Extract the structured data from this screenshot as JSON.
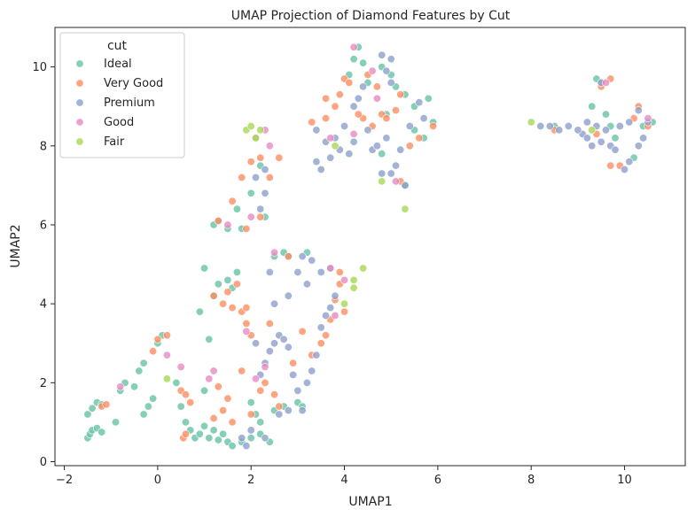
{
  "chart_data": {
    "type": "scatter",
    "title": "UMAP Projection of Diamond Features by Cut",
    "xlabel": "UMAP1",
    "ylabel": "UMAP2",
    "xlim": [
      -2.2,
      11.3
    ],
    "ylim": [
      -0.1,
      11.0
    ],
    "xticks": [
      -2,
      0,
      2,
      4,
      6,
      8,
      10
    ],
    "yticks": [
      0,
      2,
      4,
      6,
      8,
      10
    ],
    "grid": false,
    "legend": {
      "title": "cut",
      "placement": "top-left"
    },
    "series": [
      {
        "name": "Ideal",
        "color": "#66c2a5",
        "points": [
          [
            -1.5,
            0.6
          ],
          [
            -1.45,
            0.7
          ],
          [
            -1.4,
            0.8
          ],
          [
            -1.3,
            0.85
          ],
          [
            -1.2,
            0.75
          ],
          [
            -1.5,
            1.2
          ],
          [
            -1.4,
            1.35
          ],
          [
            -1.3,
            1.5
          ],
          [
            -1.2,
            1.45
          ],
          [
            -0.9,
            1.0
          ],
          [
            -0.8,
            1.8
          ],
          [
            -0.7,
            2.0
          ],
          [
            -0.5,
            1.9
          ],
          [
            -0.3,
            2.5
          ],
          [
            -0.4,
            2.3
          ],
          [
            -0.3,
            1.2
          ],
          [
            -0.2,
            1.4
          ],
          [
            -0.1,
            1.6
          ],
          [
            0.0,
            3.0
          ],
          [
            0.1,
            3.2
          ],
          [
            0.4,
            2.0
          ],
          [
            0.5,
            1.4
          ],
          [
            0.6,
            1.0
          ],
          [
            0.7,
            0.8
          ],
          [
            0.8,
            0.6
          ],
          [
            0.9,
            0.7
          ],
          [
            1.0,
            0.9
          ],
          [
            1.1,
            0.6
          ],
          [
            1.2,
            0.8
          ],
          [
            1.3,
            0.55
          ],
          [
            1.4,
            0.7
          ],
          [
            1.5,
            0.5
          ],
          [
            1.6,
            0.4
          ],
          [
            1.8,
            0.5
          ],
          [
            2.0,
            0.6
          ],
          [
            2.2,
            0.7
          ],
          [
            2.4,
            0.5
          ],
          [
            1.0,
            1.8
          ],
          [
            1.1,
            3.1
          ],
          [
            0.9,
            3.8
          ],
          [
            1.0,
            4.9
          ],
          [
            1.2,
            4.2
          ],
          [
            1.3,
            4.5
          ],
          [
            1.5,
            4.6
          ],
          [
            1.6,
            4.4
          ],
          [
            1.7,
            4.8
          ],
          [
            1.2,
            6.0
          ],
          [
            1.3,
            6.1
          ],
          [
            1.5,
            5.9
          ],
          [
            1.7,
            6.4
          ],
          [
            1.8,
            5.9
          ],
          [
            2.0,
            6.8
          ],
          [
            2.2,
            7.5
          ],
          [
            2.3,
            6.2
          ],
          [
            2.5,
            5.2
          ],
          [
            2.7,
            5.3
          ],
          [
            2.8,
            5.2
          ],
          [
            3.2,
            5.3
          ],
          [
            2.0,
            1.5
          ],
          [
            2.1,
            1.2
          ],
          [
            2.2,
            1.0
          ],
          [
            2.5,
            1.3
          ],
          [
            2.7,
            1.4
          ],
          [
            3.0,
            1.5
          ],
          [
            3.1,
            1.4
          ],
          [
            4.1,
            9.8
          ],
          [
            4.2,
            10.2
          ],
          [
            4.3,
            10.5
          ],
          [
            4.4,
            10.1
          ],
          [
            4.5,
            9.6
          ],
          [
            4.8,
            10.0
          ],
          [
            5.0,
            9.8
          ],
          [
            5.1,
            9.5
          ],
          [
            5.3,
            9.3
          ],
          [
            5.5,
            9.0
          ],
          [
            5.8,
            9.2
          ],
          [
            5.9,
            8.6
          ],
          [
            5.7,
            8.2
          ],
          [
            5.3,
            7.0
          ],
          [
            5.5,
            8.4
          ],
          [
            4.8,
            7.8
          ],
          [
            4.9,
            8.8
          ],
          [
            9.4,
            9.7
          ],
          [
            9.5,
            9.6
          ],
          [
            9.6,
            8.8
          ],
          [
            9.7,
            8.5
          ],
          [
            9.8,
            8.2
          ],
          [
            9.3,
            9.0
          ],
          [
            10.2,
            7.7
          ],
          [
            10.4,
            8.5
          ],
          [
            10.6,
            8.6
          ],
          [
            8.5,
            8.5
          ]
        ]
      },
      {
        "name": "Very Good",
        "color": "#fc8d62",
        "points": [
          [
            -1.2,
            1.4
          ],
          [
            -1.1,
            1.45
          ],
          [
            0.0,
            3.1
          ],
          [
            0.2,
            3.2
          ],
          [
            -0.1,
            2.8
          ],
          [
            0.5,
            1.8
          ],
          [
            0.6,
            1.7
          ],
          [
            0.7,
            1.5
          ],
          [
            0.55,
            0.6
          ],
          [
            0.6,
            0.7
          ],
          [
            1.2,
            4.2
          ],
          [
            1.4,
            4.0
          ],
          [
            1.5,
            4.3
          ],
          [
            1.6,
            3.9
          ],
          [
            1.7,
            4.5
          ],
          [
            1.8,
            3.8
          ],
          [
            1.9,
            3.5
          ],
          [
            1.9,
            3.9
          ],
          [
            2.0,
            3.2
          ],
          [
            1.8,
            2.3
          ],
          [
            1.5,
            1.6
          ],
          [
            1.3,
            1.9
          ],
          [
            1.4,
            1.3
          ],
          [
            1.2,
            1.1
          ],
          [
            1.6,
            1.0
          ],
          [
            2.0,
            1.2
          ],
          [
            2.2,
            1.8
          ],
          [
            2.3,
            2.0
          ],
          [
            2.5,
            1.7
          ],
          [
            2.6,
            1.4
          ],
          [
            2.9,
            2.5
          ],
          [
            3.3,
            2.7
          ],
          [
            3.5,
            3.0
          ],
          [
            3.6,
            3.2
          ],
          [
            3.7,
            3.6
          ],
          [
            3.8,
            4.1
          ],
          [
            3.9,
            4.5
          ],
          [
            4.0,
            3.8
          ],
          [
            3.9,
            4.8
          ],
          [
            1.6,
            6.6
          ],
          [
            1.8,
            7.2
          ],
          [
            2.0,
            7.6
          ],
          [
            2.2,
            7.7
          ],
          [
            2.4,
            7.2
          ],
          [
            2.6,
            7.7
          ],
          [
            1.3,
            6.1
          ],
          [
            1.9,
            5.9
          ],
          [
            2.2,
            6.2
          ],
          [
            2.8,
            5.2
          ],
          [
            3.6,
            9.2
          ],
          [
            3.8,
            9.0
          ],
          [
            3.9,
            9.3
          ],
          [
            4.0,
            9.7
          ],
          [
            4.1,
            9.6
          ],
          [
            4.5,
            9.8
          ],
          [
            4.7,
            9.5
          ],
          [
            4.8,
            8.8
          ],
          [
            4.9,
            8.7
          ],
          [
            5.1,
            8.9
          ],
          [
            5.2,
            9.3
          ],
          [
            5.4,
            8.0
          ],
          [
            5.6,
            8.2
          ],
          [
            5.9,
            8.5
          ],
          [
            4.4,
            8.7
          ],
          [
            4.6,
            8.5
          ],
          [
            4.3,
            8.8
          ],
          [
            5.2,
            7.1
          ],
          [
            3.3,
            8.6
          ],
          [
            3.6,
            8.7
          ],
          [
            8.5,
            8.4
          ],
          [
            9.5,
            9.5
          ],
          [
            9.7,
            9.7
          ],
          [
            10.2,
            8.7
          ],
          [
            10.3,
            9.0
          ],
          [
            10.5,
            8.5
          ],
          [
            9.7,
            7.5
          ],
          [
            9.9,
            7.5
          ],
          [
            9.4,
            8.3
          ],
          [
            2.4,
            3.5
          ],
          [
            3.1,
            3.3
          ]
        ]
      },
      {
        "name": "Premium",
        "color": "#8da0cb",
        "points": [
          [
            1.8,
            0.6
          ],
          [
            1.9,
            0.4
          ],
          [
            2.2,
            2.2
          ],
          [
            2.3,
            2.5
          ],
          [
            2.4,
            2.8
          ],
          [
            2.5,
            3.0
          ],
          [
            2.6,
            3.2
          ],
          [
            2.7,
            3.1
          ],
          [
            2.8,
            2.9
          ],
          [
            2.9,
            2.2
          ],
          [
            3.0,
            1.8
          ],
          [
            3.1,
            1.3
          ],
          [
            3.2,
            2.0
          ],
          [
            3.3,
            2.3
          ],
          [
            3.4,
            2.7
          ],
          [
            3.5,
            3.4
          ],
          [
            3.6,
            3.7
          ],
          [
            3.7,
            3.9
          ],
          [
            3.8,
            4.2
          ],
          [
            2.1,
            3.0
          ],
          [
            2.5,
            4.0
          ],
          [
            2.8,
            4.2
          ],
          [
            3.0,
            4.8
          ],
          [
            3.1,
            5.2
          ],
          [
            3.3,
            5.1
          ],
          [
            3.5,
            4.8
          ],
          [
            3.7,
            4.9
          ],
          [
            2.6,
            1.2
          ],
          [
            2.8,
            1.3
          ],
          [
            2.0,
            0.8
          ],
          [
            2.3,
            0.6
          ],
          [
            2.2,
            6.4
          ],
          [
            2.3,
            6.8
          ],
          [
            2.1,
            7.2
          ],
          [
            2.3,
            7.4
          ],
          [
            3.4,
            7.6
          ],
          [
            3.5,
            7.4
          ],
          [
            3.6,
            8.1
          ],
          [
            3.7,
            7.7
          ],
          [
            3.8,
            8.2
          ],
          [
            3.9,
            7.9
          ],
          [
            4.0,
            8.5
          ],
          [
            4.1,
            7.8
          ],
          [
            4.2,
            8.1
          ],
          [
            4.3,
            9.2
          ],
          [
            4.4,
            9.5
          ],
          [
            4.5,
            8.4
          ],
          [
            4.6,
            7.9
          ],
          [
            4.7,
            8.0
          ],
          [
            4.8,
            7.3
          ],
          [
            4.9,
            8.2
          ],
          [
            5.0,
            7.3
          ],
          [
            5.1,
            7.5
          ],
          [
            5.2,
            7.9
          ],
          [
            5.3,
            7.0
          ],
          [
            5.4,
            8.5
          ],
          [
            5.6,
            9.1
          ],
          [
            5.7,
            8.7
          ],
          [
            3.4,
            8.4
          ],
          [
            4.2,
            9.0
          ],
          [
            4.9,
            9.9
          ],
          [
            5.0,
            10.2
          ],
          [
            4.8,
            10.3
          ],
          [
            5.0,
            9.6
          ],
          [
            9.1,
            8.3
          ],
          [
            9.2,
            8.2
          ],
          [
            9.3,
            8.0
          ],
          [
            9.5,
            8.1
          ],
          [
            9.6,
            8.4
          ],
          [
            9.7,
            8.0
          ],
          [
            9.8,
            7.9
          ],
          [
            10.0,
            7.4
          ],
          [
            10.1,
            7.6
          ],
          [
            10.3,
            8.0
          ],
          [
            10.4,
            8.2
          ],
          [
            10.5,
            8.6
          ],
          [
            10.3,
            8.9
          ],
          [
            10.1,
            8.6
          ],
          [
            9.9,
            8.5
          ],
          [
            9.4,
            8.5
          ],
          [
            9.2,
            8.6
          ],
          [
            9.0,
            8.4
          ],
          [
            8.8,
            8.5
          ],
          [
            8.6,
            8.4
          ],
          [
            8.4,
            8.5
          ],
          [
            8.2,
            8.5
          ],
          [
            9.5,
            9.6
          ],
          [
            3.2,
            4.5
          ],
          [
            2.4,
            4.8
          ]
        ]
      },
      {
        "name": "Good",
        "color": "#e78ac3",
        "points": [
          [
            -0.8,
            1.9
          ],
          [
            0.2,
            2.7
          ],
          [
            0.5,
            2.4
          ],
          [
            1.1,
            2.1
          ],
          [
            1.2,
            2.3
          ],
          [
            1.9,
            3.3
          ],
          [
            2.1,
            2.1
          ],
          [
            2.3,
            2.4
          ],
          [
            2.1,
            8.2
          ],
          [
            2.3,
            8.4
          ],
          [
            2.4,
            8.0
          ],
          [
            1.5,
            6.0
          ],
          [
            2.0,
            6.2
          ],
          [
            2.5,
            5.3
          ],
          [
            3.7,
            4.9
          ],
          [
            3.8,
            3.7
          ],
          [
            4.0,
            4.6
          ],
          [
            4.2,
            10.5
          ],
          [
            4.6,
            9.9
          ],
          [
            4.7,
            9.2
          ],
          [
            5.1,
            7.1
          ],
          [
            4.2,
            8.3
          ],
          [
            3.7,
            8.2
          ],
          [
            10.5,
            8.7
          ],
          [
            9.6,
            9.6
          ]
        ]
      },
      {
        "name": "Fair",
        "color": "#a6d854",
        "points": [
          [
            0.2,
            2.1
          ],
          [
            1.9,
            8.4
          ],
          [
            2.0,
            8.5
          ],
          [
            2.1,
            8.2
          ],
          [
            2.2,
            8.4
          ],
          [
            3.8,
            8.0
          ],
          [
            4.2,
            4.6
          ],
          [
            4.2,
            4.4
          ],
          [
            4.4,
            4.9
          ],
          [
            4.0,
            4.0
          ],
          [
            5.3,
            6.4
          ],
          [
            4.8,
            7.1
          ],
          [
            8.0,
            8.6
          ],
          [
            9.3,
            8.4
          ]
        ]
      }
    ]
  }
}
